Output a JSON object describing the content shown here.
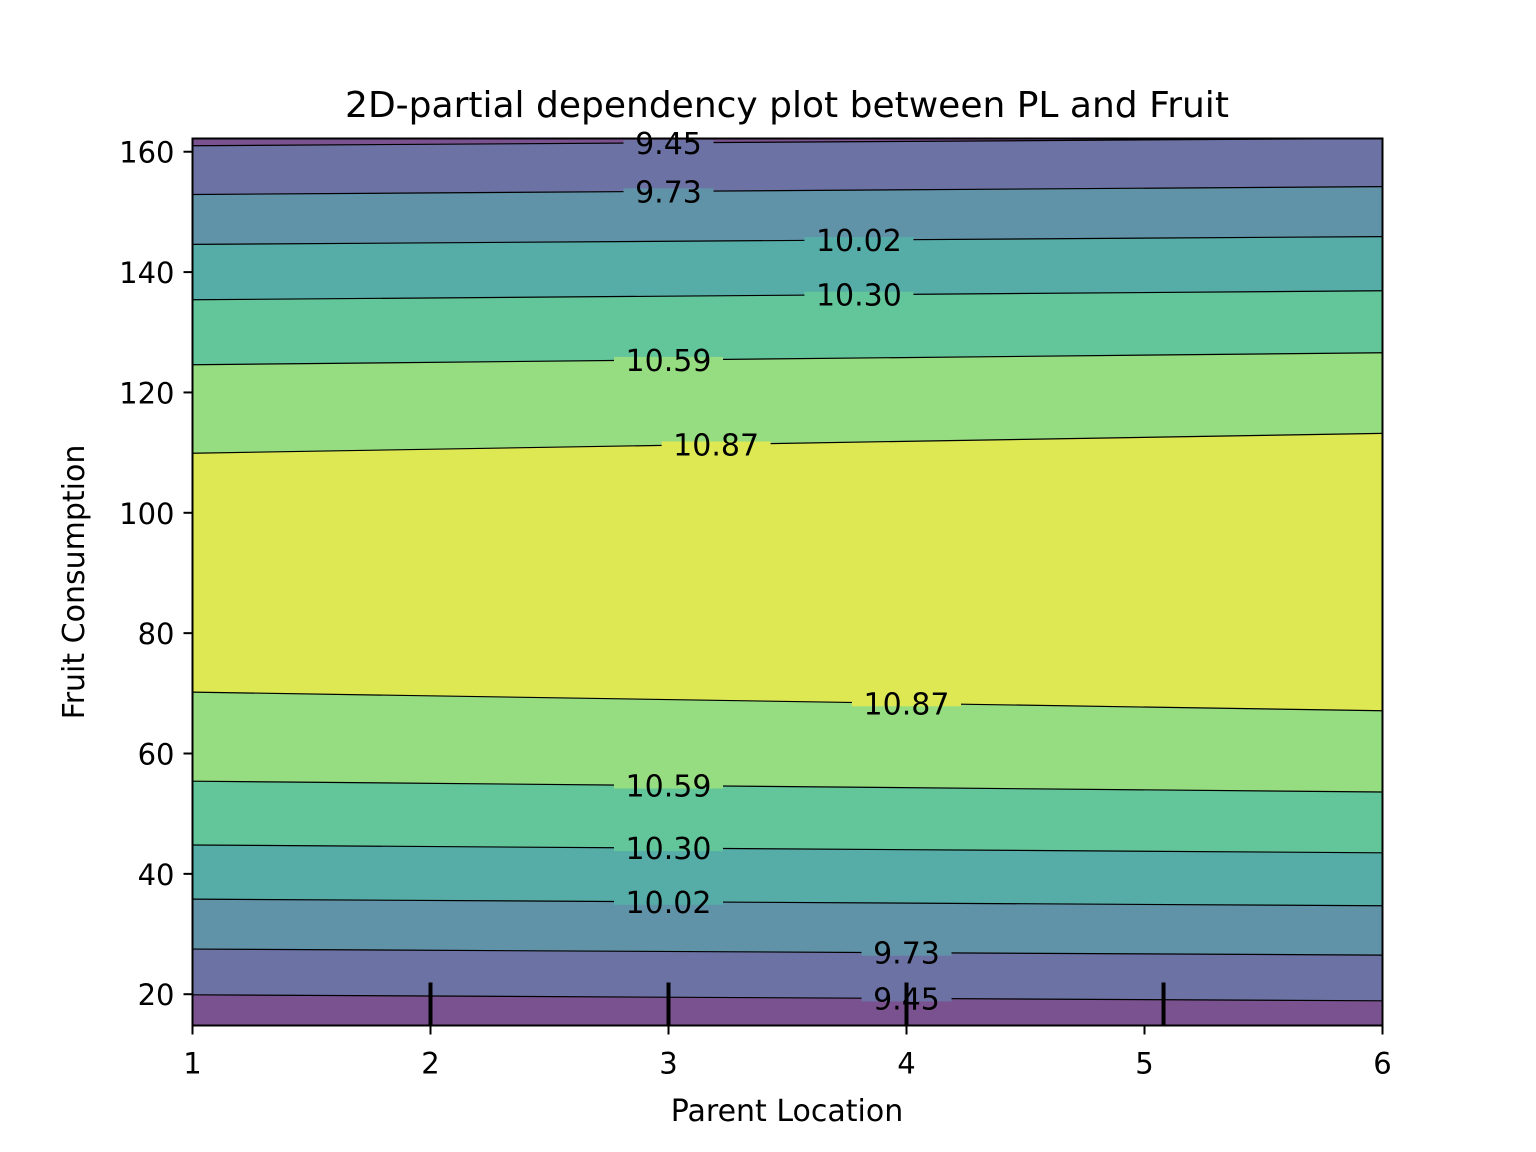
{
  "chart_data": {
    "type": "contour",
    "title": "2D-partial dependency plot between PL and Fruit",
    "xlabel": "Parent Location",
    "ylabel": "Fruit Consumption",
    "xlim": [
      1,
      6
    ],
    "ylim": [
      14.8,
      162.2
    ],
    "x_ticks": [
      1,
      2,
      3,
      4,
      5,
      6
    ],
    "y_ticks": [
      20,
      40,
      60,
      80,
      100,
      120,
      140,
      160
    ],
    "levels": [
      9.16,
      9.45,
      9.73,
      10.02,
      10.3,
      10.59,
      10.87,
      11.16
    ],
    "fill_colors": [
      "#7b5290",
      "#6c73a4",
      "#6092a8",
      "#56ada8",
      "#63c69b",
      "#96dc80",
      "#dde853"
    ],
    "contours": [
      {
        "level": 9.45,
        "label": "9.45",
        "points": [
          [
            1,
            161.0
          ],
          [
            6,
            162.2
          ]
        ]
      },
      {
        "level": 9.73,
        "label": "9.73",
        "points": [
          [
            1,
            152.9
          ],
          [
            6,
            154.2
          ]
        ]
      },
      {
        "level": 10.02,
        "label": "10.02",
        "points": [
          [
            1,
            144.6
          ],
          [
            6,
            145.9
          ]
        ]
      },
      {
        "level": 10.3,
        "label": "10.30",
        "points": [
          [
            1,
            135.4
          ],
          [
            6,
            136.9
          ]
        ]
      },
      {
        "level": 10.59,
        "label": "10.59",
        "points": [
          [
            1,
            124.6
          ],
          [
            6,
            126.6
          ]
        ]
      },
      {
        "level": 10.87,
        "label": "10.87",
        "points": [
          [
            1,
            109.9
          ],
          [
            6,
            113.2
          ]
        ]
      },
      {
        "level": 10.87,
        "label": "10.87",
        "points": [
          [
            1,
            70.2
          ],
          [
            6,
            67.1
          ]
        ]
      },
      {
        "level": 10.59,
        "label": "10.59",
        "points": [
          [
            1,
            55.4
          ],
          [
            6,
            53.6
          ]
        ]
      },
      {
        "level": 10.3,
        "label": "10.30",
        "points": [
          [
            1,
            44.8
          ],
          [
            6,
            43.5
          ]
        ]
      },
      {
        "level": 10.02,
        "label": "10.02",
        "points": [
          [
            1,
            35.8
          ],
          [
            6,
            34.7
          ]
        ]
      },
      {
        "level": 9.73,
        "label": "9.73",
        "points": [
          [
            1,
            27.5
          ],
          [
            6,
            26.5
          ]
        ]
      },
      {
        "level": 9.45,
        "label": "9.45",
        "points": [
          [
            1,
            19.9
          ],
          [
            6,
            18.9
          ]
        ]
      }
    ],
    "contour_labels": [
      {
        "text": "9.45",
        "x": 3.0,
        "y": 162.2
      },
      {
        "text": "9.73",
        "x": 3.0,
        "y": 154.2
      },
      {
        "text": "10.02",
        "x": 3.8,
        "y": 145.8
      },
      {
        "text": "10.30",
        "x": 3.8,
        "y": 136.9
      },
      {
        "text": "10.59",
        "x": 3.0,
        "y": 126.7
      },
      {
        "text": "10.87",
        "x": 3.2,
        "y": 112.5
      },
      {
        "text": "10.87",
        "x": 4.0,
        "y": 68.9
      },
      {
        "text": "10.59",
        "x": 3.0,
        "y": 54.7
      },
      {
        "text": "10.30",
        "x": 3.0,
        "y": 44.2
      },
      {
        "text": "10.02",
        "x": 3.0,
        "y": 35.3
      },
      {
        "text": "9.73",
        "x": 4.0,
        "y": 26.9
      },
      {
        "text": "9.45",
        "x": 4.0,
        "y": 19.3
      }
    ],
    "deciles_x": [
      2,
      3,
      4,
      5.08
    ]
  }
}
